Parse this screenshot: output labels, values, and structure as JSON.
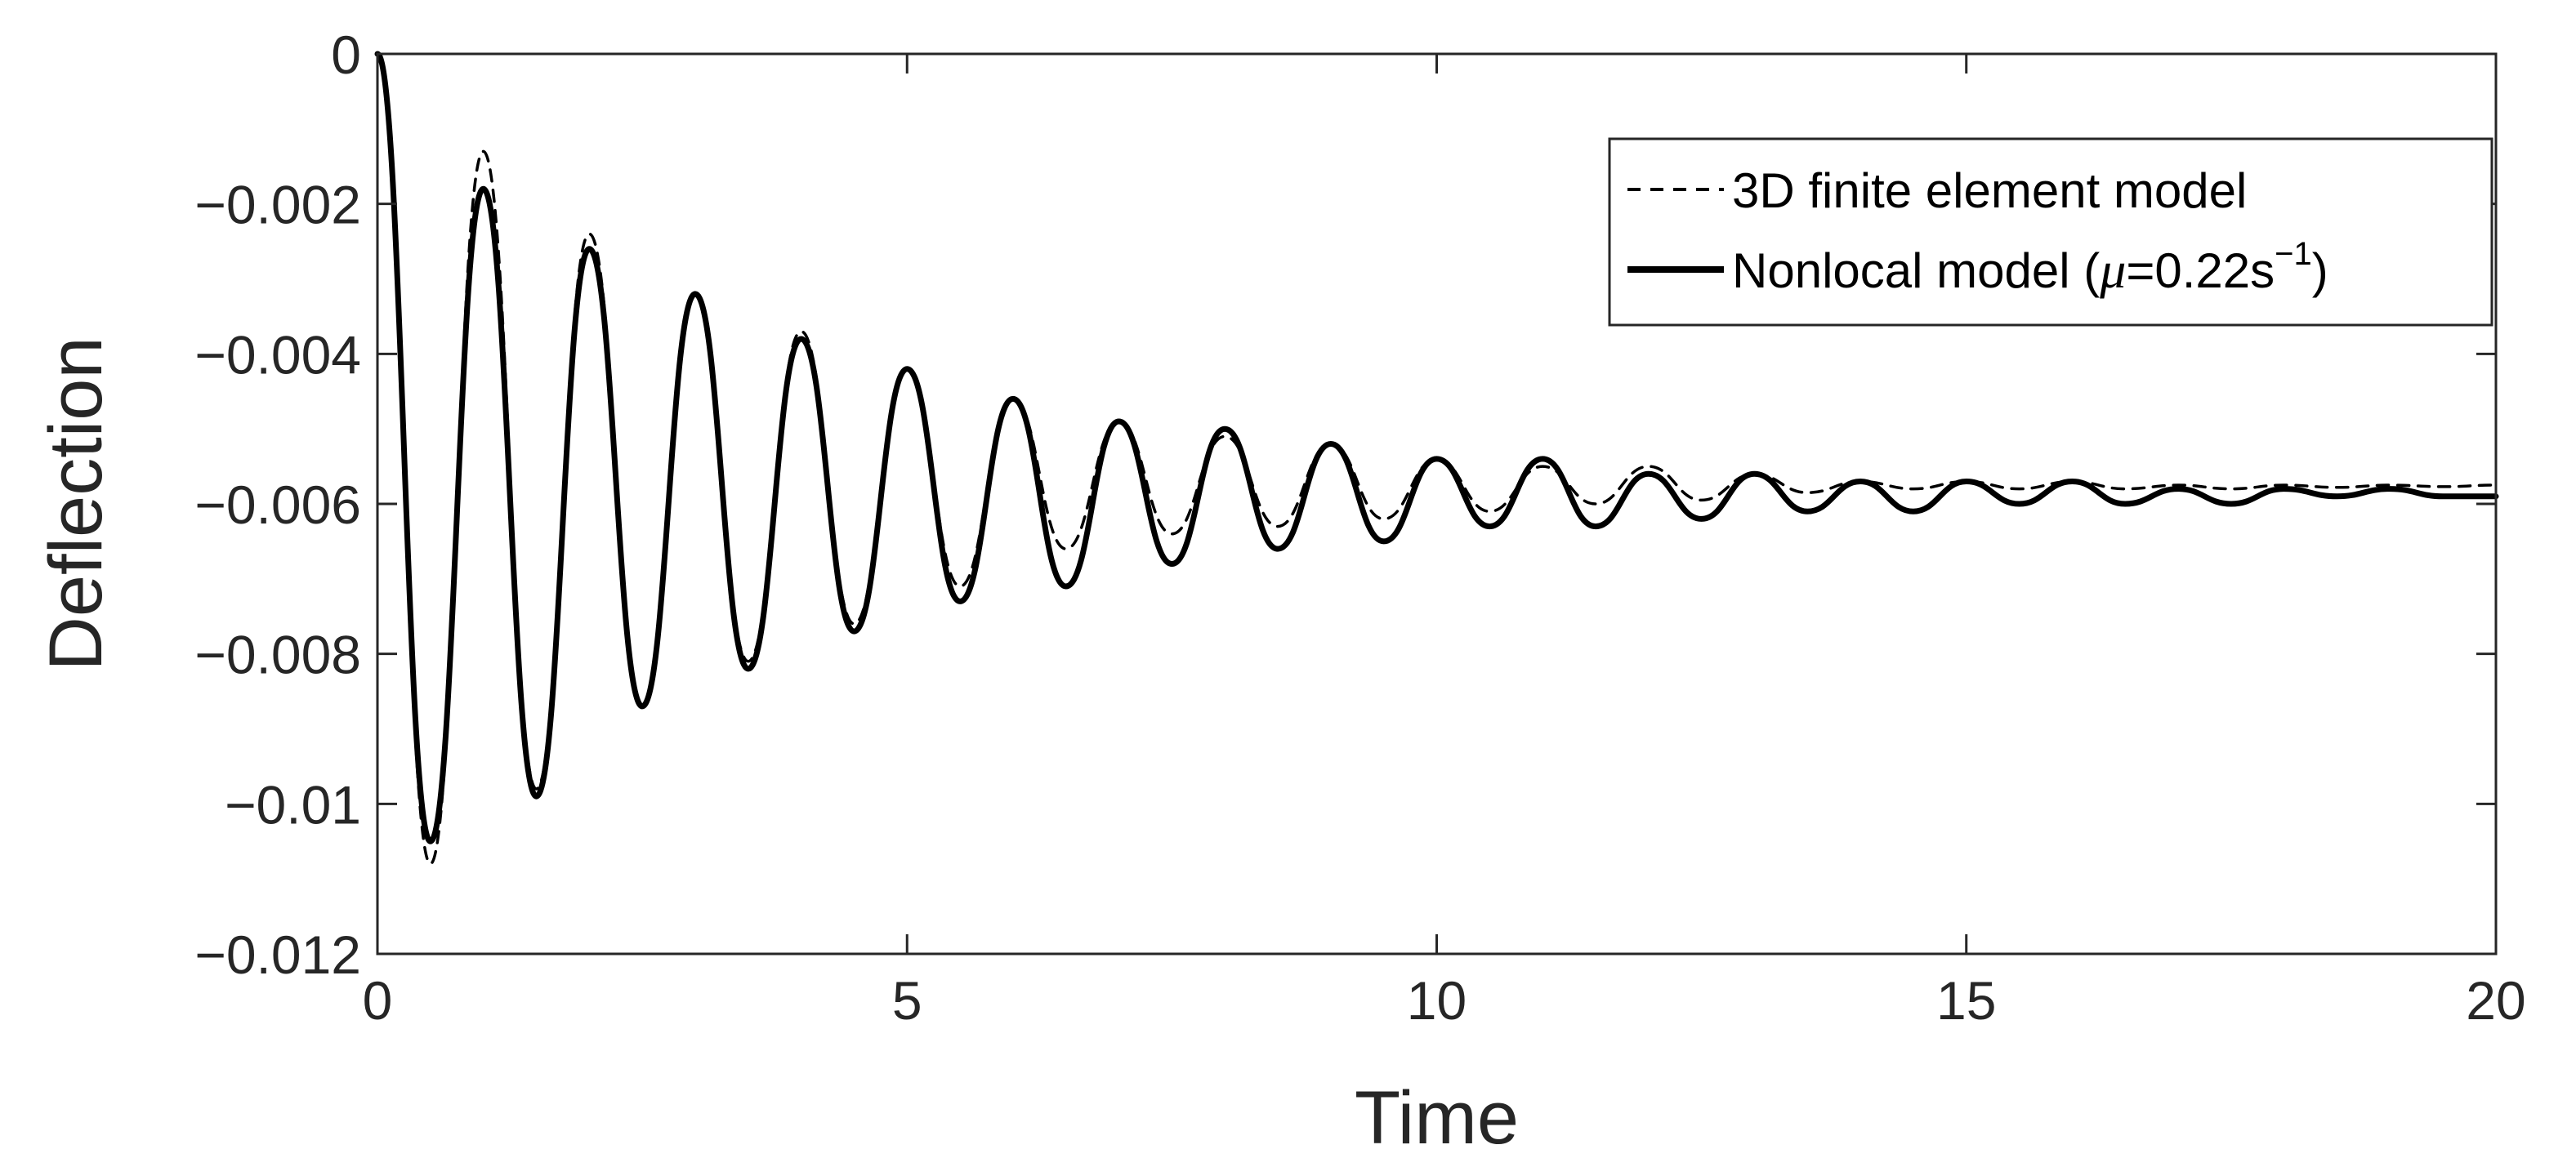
{
  "chart_data": {
    "type": "line",
    "xlabel": "Time",
    "ylabel": "Deflection",
    "xlim": [
      0,
      20
    ],
    "ylim": [
      -0.012,
      0
    ],
    "x_ticks": [
      "0",
      "5",
      "10",
      "15",
      "20"
    ],
    "y_ticks": [
      "0",
      "−0.002",
      "−0.004",
      "−0.006",
      "−0.008",
      "−0.01",
      "−0.012"
    ],
    "grid": false,
    "legend_position": "top-right",
    "legend": {
      "fem_label": "3D finite element model",
      "nonlocal_prefix": "Nonlocal model (",
      "nonlocal_mu": "μ",
      "nonlocal_value": "=0.22s",
      "nonlocal_exp": "−1",
      "nonlocal_suffix": ")"
    },
    "series": [
      {
        "name": "3D finite element model",
        "style": "dashed",
        "color": "#000000",
        "x": [
          0,
          0.5,
          1.0,
          1.5,
          2.0,
          2.5,
          3.0,
          3.5,
          4.0,
          4.5,
          5.0,
          5.5,
          6.0,
          6.5,
          7.0,
          7.5,
          8.0,
          8.5,
          9.0,
          9.5,
          10.0,
          10.5,
          11.0,
          11.5,
          12.0,
          12.5,
          13.0,
          13.5,
          14.0,
          14.5,
          15.0,
          15.5,
          16.0,
          16.5,
          17.0,
          17.5,
          18.0,
          18.5,
          19.0,
          19.5,
          20.0
        ],
        "y": [
          0,
          -0.0108,
          -0.0013,
          -0.0098,
          -0.0024,
          -0.0087,
          -0.0032,
          -0.0081,
          -0.0037,
          -0.0076,
          -0.0042,
          -0.0071,
          -0.0046,
          -0.0066,
          -0.0049,
          -0.0064,
          -0.0051,
          -0.0063,
          -0.0052,
          -0.0062,
          -0.0054,
          -0.0061,
          -0.0055,
          -0.006,
          -0.0055,
          -0.00595,
          -0.0056,
          -0.00585,
          -0.0057,
          -0.0058,
          -0.0057,
          -0.0058,
          -0.0057,
          -0.0058,
          -0.00575,
          -0.0058,
          -0.00575,
          -0.00578,
          -0.00575,
          -0.00577,
          -0.00575
        ]
      },
      {
        "name": "Nonlocal model (μ=0.22s−1)",
        "style": "solid",
        "color": "#000000",
        "x": [
          0,
          0.5,
          1.0,
          1.5,
          2.0,
          2.5,
          3.0,
          3.5,
          4.0,
          4.5,
          5.0,
          5.5,
          6.0,
          6.5,
          7.0,
          7.5,
          8.0,
          8.5,
          9.0,
          9.5,
          10.0,
          10.5,
          11.0,
          11.5,
          12.0,
          12.5,
          13.0,
          13.5,
          14.0,
          14.5,
          15.0,
          15.5,
          16.0,
          16.5,
          17.0,
          17.5,
          18.0,
          18.5,
          19.0,
          19.5,
          20.0
        ],
        "y": [
          0,
          -0.0105,
          -0.0018,
          -0.0099,
          -0.0026,
          -0.0087,
          -0.0032,
          -0.0082,
          -0.0038,
          -0.0077,
          -0.0042,
          -0.0073,
          -0.0046,
          -0.0071,
          -0.0049,
          -0.0068,
          -0.005,
          -0.0066,
          -0.0052,
          -0.0065,
          -0.0054,
          -0.0063,
          -0.0054,
          -0.0063,
          -0.0056,
          -0.0062,
          -0.0056,
          -0.0061,
          -0.0057,
          -0.0061,
          -0.0057,
          -0.006,
          -0.0057,
          -0.006,
          -0.0058,
          -0.006,
          -0.0058,
          -0.0059,
          -0.0058,
          -0.0059,
          -0.0059
        ]
      }
    ]
  }
}
